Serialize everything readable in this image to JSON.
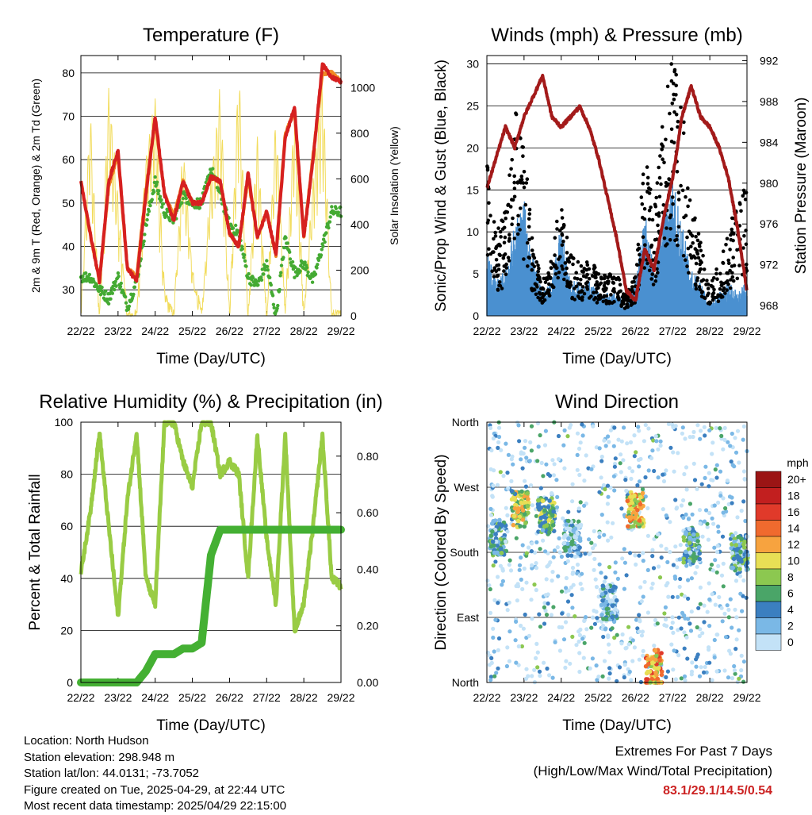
{
  "colors": {
    "temp_red": "#d62020",
    "temp_orange": "#f08a24",
    "dewpoint_green": "#44aa33",
    "solar_yellow": "#f2dc5d",
    "gust_black": "#000000",
    "wind_blue": "#4a90d0",
    "pressure_maroon": "#a31a1a",
    "rh_green": "#99cc44",
    "precip_green": "#44b033"
  },
  "x_ticks": [
    "22/22",
    "23/22",
    "24/22",
    "25/22",
    "26/22",
    "27/22",
    "28/22",
    "29/22"
  ],
  "x_axis_label": "Time (Day/UTC)",
  "info": {
    "location": "Location: North Hudson",
    "elevation": "Station elevation: 298.948 m",
    "latlon": "Station lat/lon: 44.0131; -73.7052",
    "created": "Figure created on Tue, 2025-04-29, at 22:44 UTC",
    "recent": "Most recent data timestamp: 2025/04/29 22:15:00"
  },
  "extremes": {
    "title": "Extremes For Past 7 Days",
    "subtitle": "(High/Low/Max Wind/Total Precipitation)",
    "values": "83.1/29.1/14.5/0.54"
  },
  "chart_data": [
    {
      "type": "line",
      "title": "Temperature (F)",
      "xlabel": "Time (Day/UTC)",
      "ylabel": "2m & 9m T (Red, Orange) & 2m Td (Green)",
      "ylabel_right": "Solar Insolation (Yellow)",
      "ylim": [
        24,
        84
      ],
      "ylim_right": [
        0,
        1140
      ],
      "yticks": [
        30,
        40,
        50,
        60,
        70,
        80
      ],
      "yticks_right": [
        0,
        200,
        400,
        600,
        800,
        1000
      ],
      "x": [
        0,
        0.25,
        0.5,
        0.75,
        1.0,
        1.25,
        1.5,
        1.75,
        2.0,
        2.25,
        2.5,
        2.75,
        3.0,
        3.25,
        3.5,
        3.75,
        4.0,
        4.25,
        4.5,
        4.75,
        5.0,
        5.25,
        5.5,
        5.75,
        6.0,
        6.25,
        6.5,
        6.75,
        7.0
      ],
      "series": [
        {
          "name": "2m T",
          "axis": "left",
          "values": [
            55,
            43,
            32,
            55,
            62,
            35,
            32,
            52,
            70,
            52,
            46,
            55,
            50,
            50,
            56,
            55,
            43,
            40,
            57,
            42,
            48,
            38,
            65,
            72,
            42,
            60,
            82,
            79,
            78
          ]
        },
        {
          "name": "9m T",
          "axis": "left",
          "values": [
            55,
            43,
            32,
            54,
            61,
            35,
            33,
            53,
            69,
            52,
            47,
            55,
            50,
            50,
            56,
            55,
            43,
            40,
            56,
            42,
            48,
            38,
            66,
            71,
            42,
            61,
            80,
            80,
            78
          ]
        },
        {
          "name": "2m Td",
          "axis": "left",
          "values": [
            33,
            33,
            30,
            28,
            33,
            26,
            32,
            45,
            55,
            48,
            46,
            52,
            50,
            50,
            58,
            52,
            45,
            43,
            33,
            31,
            36,
            24,
            42,
            34,
            36,
            32,
            40,
            48,
            48
          ]
        },
        {
          "name": "Solar Insolation",
          "axis": "right",
          "values": [
            0,
            900,
            0,
            1000,
            500,
            0,
            0,
            700,
            950,
            100,
            0,
            750,
            200,
            0,
            600,
            1000,
            0,
            1100,
            0,
            800,
            0,
            900,
            0,
            950,
            0,
            600,
            1050,
            0,
            0
          ]
        }
      ]
    },
    {
      "type": "scatter",
      "title": "Winds (mph) & Pressure (mb)",
      "xlabel": "Time (Day/UTC)",
      "ylabel": "Sonic/Prop Wind & Gust (Blue, Black)",
      "ylabel_right": "Station Pressure (Maroon)",
      "ylim": [
        0,
        31
      ],
      "ylim_right": [
        967,
        992.5
      ],
      "yticks": [
        0,
        5,
        10,
        15,
        20,
        25,
        30
      ],
      "yticks_right": [
        968,
        972,
        976,
        980,
        984,
        988,
        992
      ],
      "x": [
        0,
        0.25,
        0.5,
        0.75,
        1.0,
        1.25,
        1.5,
        1.75,
        2.0,
        2.25,
        2.5,
        2.75,
        3.0,
        3.25,
        3.5,
        3.75,
        4.0,
        4.25,
        4.5,
        4.75,
        5.0,
        5.25,
        5.5,
        5.75,
        6.0,
        6.25,
        6.5,
        6.75,
        7.0
      ],
      "series": [
        {
          "name": "Wind",
          "axis": "left",
          "values": [
            6,
            3,
            4,
            8,
            10,
            5,
            2,
            3,
            8,
            3,
            3,
            3,
            2,
            2,
            2,
            1,
            3,
            9,
            4,
            9,
            12,
            8,
            4,
            3,
            1,
            2,
            3,
            2,
            3
          ]
        },
        {
          "name": "Gust",
          "axis": "left",
          "values": [
            15,
            8,
            10,
            20,
            17,
            6,
            4,
            7,
            11,
            6,
            5,
            6,
            4,
            4,
            4,
            2,
            4,
            16,
            10,
            20,
            27,
            21,
            11,
            7,
            3,
            5,
            8,
            12,
            13
          ]
        },
        {
          "name": "Pressure",
          "axis": "right",
          "values": [
            979.5,
            982.5,
            985.5,
            983.5,
            986.5,
            988.5,
            990.5,
            986.5,
            985.5,
            986.5,
            987.5,
            985.5,
            982.5,
            978.5,
            974.5,
            969.5,
            968.5,
            973.5,
            971.5,
            976.5,
            980.5,
            986.5,
            989.5,
            986.5,
            985.5,
            983.5,
            980.5,
            975.5,
            969.5
          ]
        }
      ]
    },
    {
      "type": "line",
      "title": "Relative Humidity (%) & Precipitation (in)",
      "xlabel": "Time (Day/UTC)",
      "ylabel": "Percent & Total Rainfall",
      "ylim": [
        0,
        100
      ],
      "ylim_right": [
        0,
        0.92
      ],
      "yticks": [
        0,
        20,
        40,
        60,
        80,
        100
      ],
      "yticks_right": [
        "0.00",
        "0.20",
        "0.40",
        "0.60",
        "0.80"
      ],
      "x": [
        0,
        0.25,
        0.5,
        0.75,
        1.0,
        1.25,
        1.5,
        1.75,
        2.0,
        2.25,
        2.5,
        2.75,
        3.0,
        3.25,
        3.5,
        3.75,
        4.0,
        4.25,
        4.5,
        4.75,
        5.0,
        5.25,
        5.5,
        5.75,
        6.0,
        6.25,
        6.5,
        6.75,
        7.0
      ],
      "series": [
        {
          "name": "RH",
          "axis": "left",
          "values": [
            42,
            65,
            96,
            60,
            25,
            70,
            96,
            40,
            30,
            100,
            100,
            85,
            75,
            100,
            100,
            80,
            85,
            80,
            40,
            95,
            55,
            30,
            95,
            20,
            30,
            60,
            95,
            40,
            37
          ]
        },
        {
          "name": "Precipitation",
          "axis": "right",
          "values": [
            0,
            0,
            0,
            0,
            0,
            0,
            0,
            0.04,
            0.1,
            0.1,
            0.1,
            0.12,
            0.12,
            0.14,
            0.45,
            0.54,
            0.54,
            0.54,
            0.54,
            0.54,
            0.54,
            0.54,
            0.54,
            0.54,
            0.54,
            0.54,
            0.54,
            0.54,
            0.54
          ]
        }
      ]
    },
    {
      "type": "scatter",
      "title": "Wind Direction",
      "xlabel": "Time (Day/UTC)",
      "ylabel": "Direction (Colored By Speed)",
      "yticks": [
        "North",
        "East",
        "South",
        "West",
        "North"
      ],
      "colorbar": {
        "unit": "mph",
        "labels": [
          "20+",
          "18",
          "16",
          "14",
          "12",
          "10",
          "8",
          "6",
          "4",
          "2",
          "0"
        ],
        "colors": [
          "#9b1515",
          "#c21f1f",
          "#e03a2a",
          "#f06a2e",
          "#f7a33f",
          "#e8df55",
          "#8cc850",
          "#4aa568",
          "#3b7fc0",
          "#7ab8e6",
          "#c3e2f7"
        ]
      },
      "clusters": [
        {
          "day": 0.3,
          "dir": 200,
          "speed": 4
        },
        {
          "day": 0.9,
          "dir": 240,
          "speed": 8
        },
        {
          "day": 1.6,
          "dir": 230,
          "speed": 6
        },
        {
          "day": 2.3,
          "dir": 200,
          "speed": 2
        },
        {
          "day": 3.3,
          "dir": 110,
          "speed": 2
        },
        {
          "day": 4.0,
          "dir": 240,
          "speed": 10
        },
        {
          "day": 4.5,
          "dir": 20,
          "speed": 12
        },
        {
          "day": 5.5,
          "dir": 190,
          "speed": 4
        },
        {
          "day": 6.8,
          "dir": 180,
          "speed": 4
        }
      ]
    }
  ]
}
